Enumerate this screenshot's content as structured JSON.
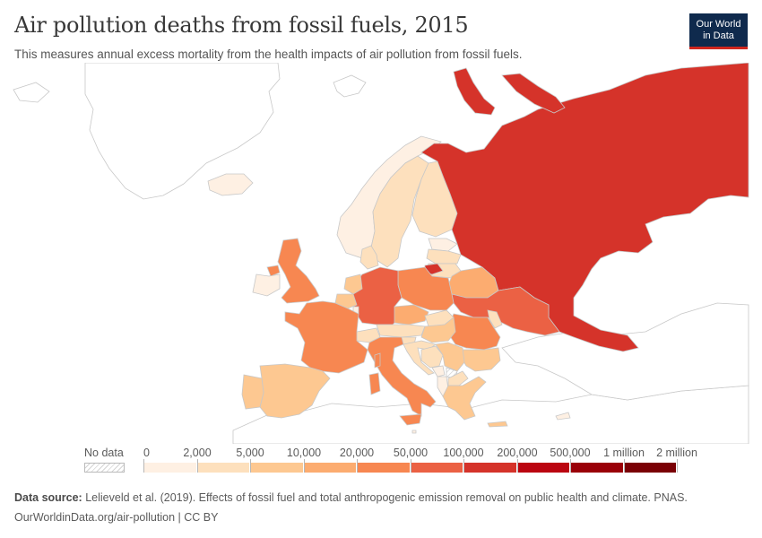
{
  "header": {
    "title": "Air pollution deaths from fossil fuels, 2015",
    "subtitle": "This measures annual excess mortality from the health impacts of air pollution from fossil fuels.",
    "logo_line1": "Our World",
    "logo_line2": "in Data"
  },
  "legend": {
    "no_data_label": "No data",
    "ticks": [
      "0",
      "2,000",
      "5,000",
      "10,000",
      "20,000",
      "50,000",
      "100,000",
      "200,000",
      "500,000",
      "1 million",
      "2 million"
    ],
    "bin_colors": [
      "#fef0e3",
      "#fde0bd",
      "#fdc891",
      "#fcac70",
      "#f78751",
      "#eb6144",
      "#d5332a",
      "#bb0510",
      "#9a0008",
      "#7a0005"
    ]
  },
  "colors": {
    "no_data_land": "#ffffff",
    "country_border": "#c8c8c8",
    "brand_navy": "#0f2a4d",
    "brand_red": "#ce261e"
  },
  "map": {
    "regions": [
      {
        "name": "Russia",
        "bin": 6
      },
      {
        "name": "Germany",
        "bin": 5
      },
      {
        "name": "Ukraine",
        "bin": 5
      },
      {
        "name": "Italy",
        "bin": 4
      },
      {
        "name": "Poland",
        "bin": 4
      },
      {
        "name": "France",
        "bin": 4
      },
      {
        "name": "United Kingdom",
        "bin": 4
      },
      {
        "name": "Romania",
        "bin": 4
      },
      {
        "name": "Spain",
        "bin": 3
      },
      {
        "name": "Belarus",
        "bin": 3
      },
      {
        "name": "Czechia",
        "bin": 3
      },
      {
        "name": "Hungary",
        "bin": 3
      },
      {
        "name": "Bulgaria",
        "bin": 2
      },
      {
        "name": "Serbia",
        "bin": 3
      },
      {
        "name": "Greece",
        "bin": 2
      },
      {
        "name": "Netherlands",
        "bin": 3
      },
      {
        "name": "Belgium",
        "bin": 3
      },
      {
        "name": "Portugal",
        "bin": 2
      },
      {
        "name": "Austria",
        "bin": 2
      },
      {
        "name": "Switzerland",
        "bin": 1
      },
      {
        "name": "Slovakia",
        "bin": 2
      },
      {
        "name": "Croatia",
        "bin": 1
      },
      {
        "name": "Bosnia and Herzegovina",
        "bin": 1
      },
      {
        "name": "Sweden",
        "bin": 1
      },
      {
        "name": "Finland",
        "bin": 1
      },
      {
        "name": "Lithuania",
        "bin": 1
      },
      {
        "name": "Latvia",
        "bin": 1
      },
      {
        "name": "Estonia",
        "bin": 0
      },
      {
        "name": "Denmark",
        "bin": 1
      },
      {
        "name": "Ireland",
        "bin": 0
      },
      {
        "name": "Norway",
        "bin": 0
      },
      {
        "name": "Slovenia",
        "bin": 1
      },
      {
        "name": "North Macedonia",
        "bin": 1
      },
      {
        "name": "Albania",
        "bin": 0
      },
      {
        "name": "Moldova",
        "bin": 1
      },
      {
        "name": "Kaliningrad (Russia)",
        "bin": 6
      },
      {
        "name": "Iceland",
        "bin": 0
      },
      {
        "name": "Cyprus",
        "bin": 0
      },
      {
        "name": "Malta",
        "bin": 0
      },
      {
        "name": "Luxembourg",
        "bin": 0
      },
      {
        "name": "Montenegro",
        "bin": 0
      },
      {
        "name": "Kosovo",
        "bin": null
      }
    ]
  },
  "footer": {
    "source_label": "Data source:",
    "source_text": "Lelieveld et al. (2019). Effects of fossil fuel and total anthropogenic emission removal on public health and climate. PNAS.",
    "url_text": "OurWorldinData.org/air-pollution | CC BY"
  }
}
